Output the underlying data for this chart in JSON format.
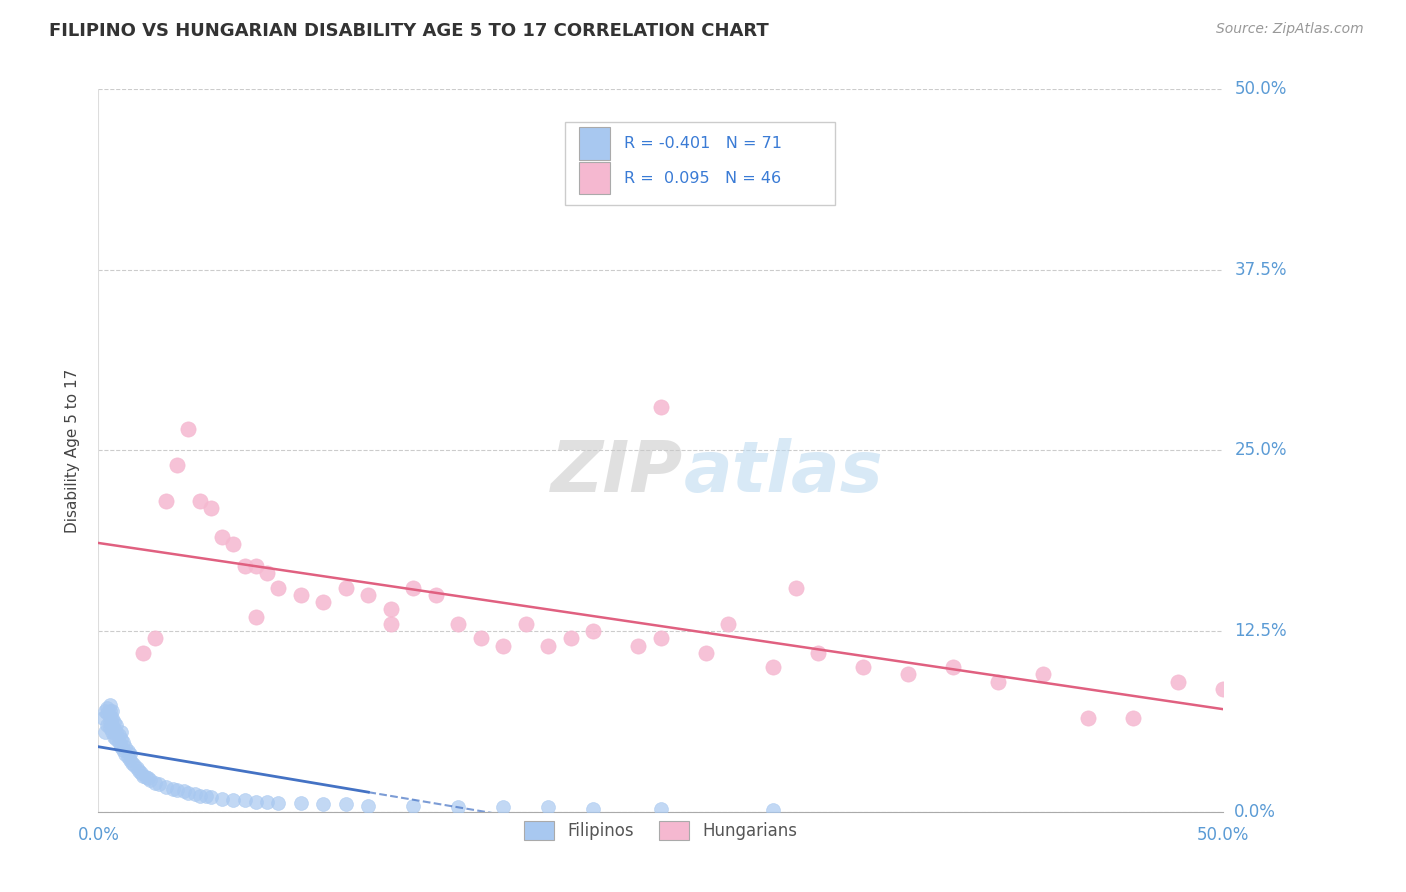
{
  "title": "FILIPINO VS HUNGARIAN DISABILITY AGE 5 TO 17 CORRELATION CHART",
  "source_text": "Source: ZipAtlas.com",
  "ylabel": "Disability Age 5 to 17",
  "xlim": [
    0.0,
    0.5
  ],
  "ylim": [
    0.0,
    0.5
  ],
  "ytick_labels": [
    "0.0%",
    "12.5%",
    "25.0%",
    "37.5%",
    "50.0%"
  ],
  "ytick_positions": [
    0.0,
    0.125,
    0.25,
    0.375,
    0.5
  ],
  "xtick_positions": [
    0.0,
    0.5
  ],
  "grid_color": "#cccccc",
  "background_color": "#ffffff",
  "filipino_color": "#a8c8f0",
  "hungarian_color": "#f5b8d0",
  "filipino_line_color": "#4472c4",
  "hungarian_line_color": "#e06080",
  "filipino_R": -0.401,
  "filipino_N": 71,
  "hungarian_R": 0.095,
  "hungarian_N": 46,
  "fil_x": [
    0.002,
    0.003,
    0.003,
    0.004,
    0.004,
    0.004,
    0.005,
    0.005,
    0.005,
    0.005,
    0.005,
    0.006,
    0.006,
    0.006,
    0.006,
    0.007,
    0.007,
    0.007,
    0.008,
    0.008,
    0.008,
    0.009,
    0.009,
    0.01,
    0.01,
    0.01,
    0.011,
    0.011,
    0.012,
    0.012,
    0.013,
    0.013,
    0.014,
    0.014,
    0.015,
    0.016,
    0.017,
    0.018,
    0.019,
    0.02,
    0.021,
    0.022,
    0.023,
    0.025,
    0.027,
    0.03,
    0.033,
    0.035,
    0.038,
    0.04,
    0.043,
    0.045,
    0.048,
    0.05,
    0.055,
    0.06,
    0.065,
    0.07,
    0.075,
    0.08,
    0.09,
    0.1,
    0.11,
    0.12,
    0.14,
    0.16,
    0.18,
    0.2,
    0.22,
    0.25,
    0.3
  ],
  "fil_y": [
    0.065,
    0.055,
    0.07,
    0.06,
    0.072,
    0.068,
    0.058,
    0.062,
    0.066,
    0.07,
    0.074,
    0.055,
    0.06,
    0.065,
    0.07,
    0.052,
    0.057,
    0.062,
    0.05,
    0.055,
    0.06,
    0.048,
    0.053,
    0.045,
    0.05,
    0.055,
    0.043,
    0.048,
    0.04,
    0.045,
    0.038,
    0.042,
    0.036,
    0.04,
    0.034,
    0.032,
    0.03,
    0.028,
    0.027,
    0.025,
    0.024,
    0.023,
    0.022,
    0.02,
    0.019,
    0.017,
    0.016,
    0.015,
    0.014,
    0.013,
    0.012,
    0.011,
    0.011,
    0.01,
    0.009,
    0.008,
    0.008,
    0.007,
    0.007,
    0.006,
    0.006,
    0.005,
    0.005,
    0.004,
    0.004,
    0.003,
    0.003,
    0.003,
    0.002,
    0.002,
    0.001
  ],
  "hun_x": [
    0.02,
    0.025,
    0.03,
    0.035,
    0.04,
    0.045,
    0.05,
    0.055,
    0.06,
    0.065,
    0.07,
    0.075,
    0.08,
    0.09,
    0.1,
    0.11,
    0.12,
    0.13,
    0.14,
    0.15,
    0.16,
    0.17,
    0.18,
    0.19,
    0.2,
    0.21,
    0.22,
    0.24,
    0.25,
    0.27,
    0.28,
    0.3,
    0.32,
    0.34,
    0.36,
    0.38,
    0.4,
    0.42,
    0.44,
    0.46,
    0.48,
    0.5,
    0.25,
    0.31,
    0.07,
    0.13
  ],
  "hun_y": [
    0.11,
    0.12,
    0.215,
    0.24,
    0.265,
    0.215,
    0.21,
    0.19,
    0.185,
    0.17,
    0.17,
    0.165,
    0.155,
    0.15,
    0.145,
    0.155,
    0.15,
    0.14,
    0.155,
    0.15,
    0.13,
    0.12,
    0.115,
    0.13,
    0.115,
    0.12,
    0.125,
    0.115,
    0.12,
    0.11,
    0.13,
    0.1,
    0.11,
    0.1,
    0.095,
    0.1,
    0.09,
    0.095,
    0.065,
    0.065,
    0.09,
    0.085,
    0.28,
    0.155,
    0.135,
    0.13
  ],
  "watermark_text": "ZIPatlas",
  "watermark_color": "#d0e8f5"
}
